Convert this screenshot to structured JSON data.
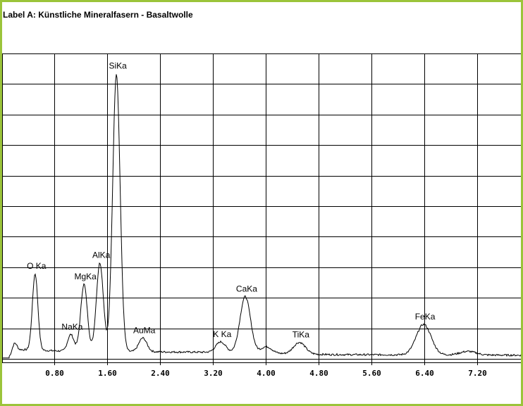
{
  "title": "Label A: Künstliche Mineralfasern - Basaltwolle",
  "colors": {
    "border": "#9bc43a",
    "background": "#ffffff",
    "line": "#000000"
  },
  "chart_data": {
    "type": "line",
    "title": "Label A: Künstliche Mineralfasern - Basaltwolle",
    "xlabel": "",
    "ylabel": "",
    "xlim": [
      0,
      7.86
    ],
    "ylim": [
      0,
      10
    ],
    "grid": true,
    "x_ticks": [
      "0.80",
      "1.60",
      "2.40",
      "3.20",
      "4.00",
      "4.80",
      "5.60",
      "6.40",
      "7.20"
    ],
    "x_tick_values": [
      0.8,
      1.6,
      2.4,
      3.2,
      4.0,
      4.8,
      5.6,
      6.4,
      7.2
    ],
    "background_level": [
      [
        0.12,
        0.05
      ],
      [
        0.3,
        0.3
      ],
      [
        1.0,
        0.25
      ],
      [
        3.0,
        0.22
      ],
      [
        5.0,
        0.14
      ],
      [
        7.86,
        0.12
      ]
    ],
    "peaks": [
      {
        "label": "",
        "energy": 0.2,
        "intensity": 0.35
      },
      {
        "label": "O Ka",
        "energy": 0.51,
        "intensity": 2.5
      },
      {
        "label": "NaKa",
        "energy": 1.05,
        "intensity": 0.55
      },
      {
        "label": "MgKa",
        "energy": 1.25,
        "intensity": 2.2
      },
      {
        "label": "AlKa",
        "energy": 1.49,
        "intensity": 2.9
      },
      {
        "label": "SiKa",
        "energy": 1.74,
        "intensity": 9.1
      },
      {
        "label": "AuMa",
        "energy": 2.14,
        "intensity": 0.45
      },
      {
        "label": "K Ka",
        "energy": 3.32,
        "intensity": 0.35
      },
      {
        "label": "CaKa",
        "energy": 3.69,
        "intensity": 1.85
      },
      {
        "label": "",
        "energy": 4.01,
        "intensity": 0.22
      },
      {
        "label": "TiKa",
        "energy": 4.51,
        "intensity": 0.38
      },
      {
        "label": "FeKa",
        "energy": 6.39,
        "intensity": 1.0
      },
      {
        "label": "",
        "energy": 7.06,
        "intensity": 0.12
      }
    ]
  }
}
